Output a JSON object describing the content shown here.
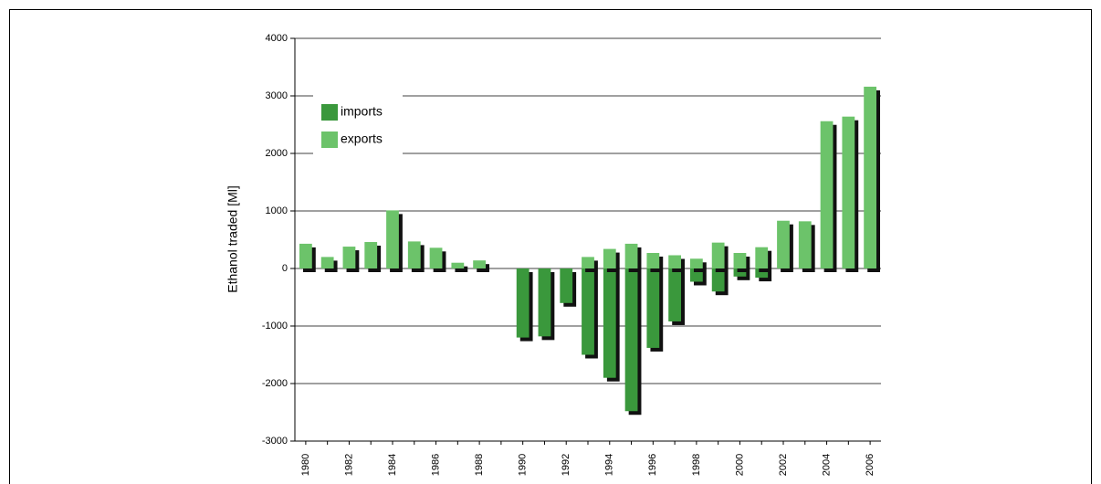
{
  "chart_data": {
    "type": "bar",
    "y_label": "Ethanol traded [Ml]",
    "categories": [
      "1980",
      null,
      "1982",
      null,
      "1984",
      null,
      "1986",
      null,
      "1988",
      null,
      "1990",
      null,
      "1992",
      null,
      "1994",
      null,
      "1996",
      null,
      "1998",
      null,
      "2000",
      null,
      "2002",
      null,
      "2004",
      null,
      "2006"
    ],
    "series": [
      {
        "name": "imports",
        "color": "#3a983c",
        "values": [
          0,
          0,
          0,
          0,
          0,
          0,
          0,
          0,
          0,
          0,
          -1200,
          -1180,
          -600,
          -1500,
          -1900,
          -2480,
          -1380,
          -920,
          -230,
          -400,
          -140,
          -160,
          0,
          0,
          0,
          0,
          0
        ]
      },
      {
        "name": "exports",
        "color": "#6cc36a",
        "values": [
          430,
          200,
          380,
          460,
          1010,
          470,
          360,
          100,
          140,
          0,
          0,
          0,
          0,
          200,
          340,
          430,
          270,
          230,
          170,
          450,
          270,
          370,
          830,
          820,
          2560,
          2640,
          3160
        ]
      }
    ],
    "ylim": [
      -3000,
      4000
    ],
    "yticks": [
      -3000,
      -2000,
      -1000,
      0,
      1000,
      2000,
      3000,
      4000
    ],
    "grid": true,
    "legend": "upper left"
  }
}
